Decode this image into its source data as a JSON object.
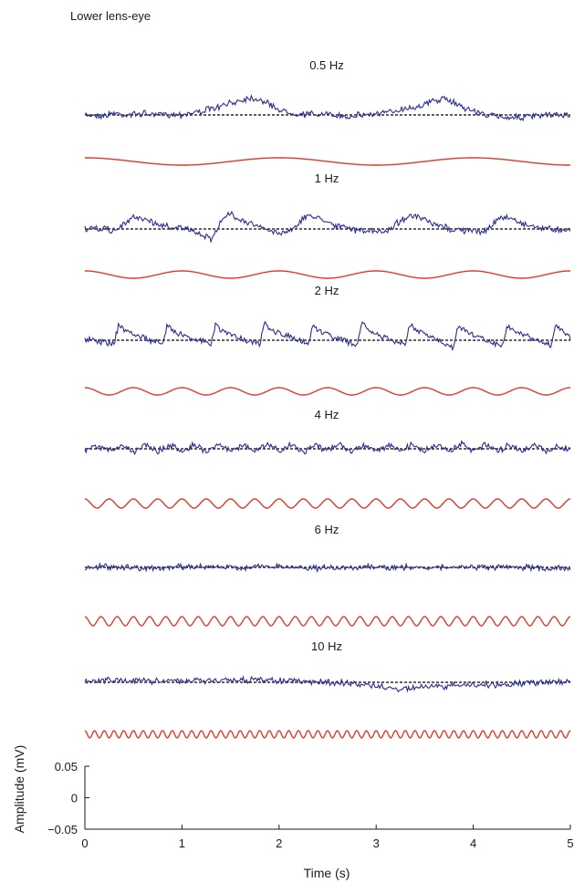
{
  "chart_data": {
    "type": "line",
    "title": "Lower lens-eye",
    "xlabel": "Time (s)",
    "ylabel": "Amplitude (mV)",
    "xlim": [
      0,
      5
    ],
    "ylim": [
      -0.05,
      0.05
    ],
    "x_ticks": [
      "0",
      "1",
      "2",
      "3",
      "4",
      "5"
    ],
    "y_ticks": [
      "0.05",
      "0",
      "−0.05"
    ],
    "colors": {
      "response": "#2b2f8f",
      "stimulus": "#e03a2a",
      "baseline": "#000000"
    },
    "panels": [
      {
        "label": "0.5 Hz",
        "frequency": 0.5,
        "response_x": [
          0,
          0.1,
          0.2,
          0.3,
          0.4,
          0.5,
          0.6,
          0.7,
          0.8,
          0.9,
          1,
          1.1,
          1.2,
          1.3,
          1.4,
          1.5,
          1.6,
          1.7,
          1.8,
          1.9,
          2,
          2.1,
          2.2,
          2.3,
          2.4,
          2.5,
          2.6,
          2.7,
          2.8,
          2.9,
          3,
          3.1,
          3.2,
          3.3,
          3.4,
          3.5,
          3.6,
          3.7,
          3.8,
          3.9,
          4,
          4.1,
          4.2,
          4.3,
          4.4,
          4.5,
          4.6,
          4.7,
          4.8,
          4.9,
          5
        ],
        "response_y": [
          0,
          0,
          -0.002,
          0.004,
          0,
          0.001,
          0.003,
          0,
          0.002,
          0.001,
          0.001,
          0.004,
          0.008,
          0.012,
          0.017,
          0.024,
          0.031,
          0.036,
          0.032,
          0.022,
          0.011,
          0.005,
          0.002,
          0.001,
          0.002,
          0,
          -0.002,
          -0.003,
          0,
          0.001,
          0.002,
          0.004,
          0.009,
          0.014,
          0.016,
          0.022,
          0.03,
          0.033,
          0.026,
          0.016,
          0.008,
          0.002,
          -0.002,
          -0.004,
          -0.004,
          -0.005,
          -0.003,
          -0.002,
          -0.001,
          0,
          0
        ]
      },
      {
        "label": "1 Hz",
        "frequency": 1,
        "response_x": [
          0,
          0.1,
          0.2,
          0.3,
          0.4,
          0.5,
          0.6,
          0.7,
          0.8,
          0.9,
          1,
          1.1,
          1.2,
          1.3,
          1.4,
          1.5,
          1.6,
          1.7,
          1.8,
          1.9,
          2,
          2.1,
          2.2,
          2.3,
          2.4,
          2.5,
          2.6,
          2.7,
          2.8,
          2.9,
          3,
          3.1,
          3.2,
          3.3,
          3.4,
          3.5,
          3.6,
          3.7,
          3.8,
          3.9,
          4,
          4.1,
          4.2,
          4.3,
          4.4,
          4.5,
          4.6,
          4.7,
          4.8,
          4.9,
          5
        ],
        "response_y": [
          0,
          0,
          0,
          -0.004,
          0.008,
          0.025,
          0.022,
          0.013,
          0.007,
          0.004,
          0.003,
          -0.005,
          -0.012,
          -0.02,
          0.015,
          0.032,
          0.02,
          0.012,
          0.004,
          -0.004,
          -0.008,
          -0.004,
          0.012,
          0.028,
          0.024,
          0.016,
          0.006,
          0.002,
          -0.002,
          -0.004,
          -0.006,
          -0.005,
          0.01,
          0.024,
          0.026,
          0.018,
          0.008,
          0.004,
          -0.002,
          -0.003,
          -0.004,
          -0.006,
          0.01,
          0.024,
          0.022,
          0.012,
          0.006,
          0.003,
          0,
          -0.001,
          0
        ]
      },
      {
        "label": "2 Hz",
        "frequency": 2,
        "response_x": [
          0,
          0.1,
          0.2,
          0.3,
          0.35,
          0.4,
          0.5,
          0.6,
          0.8,
          0.85,
          0.9,
          1,
          1.1,
          1.3,
          1.35,
          1.4,
          1.5,
          1.6,
          1.8,
          1.85,
          1.9,
          2,
          2.1,
          2.3,
          2.35,
          2.4,
          2.5,
          2.6,
          2.8,
          2.85,
          2.9,
          3,
          3.1,
          3.3,
          3.35,
          3.4,
          3.5,
          3.6,
          3.8,
          3.85,
          3.9,
          4,
          4.1,
          4.3,
          4.35,
          4.4,
          4.5,
          4.6,
          4.8,
          4.85,
          4.9,
          5
        ],
        "response_y": [
          0,
          0.001,
          -0.004,
          -0.006,
          0.033,
          0.022,
          0.013,
          0.006,
          -0.01,
          0.034,
          0.022,
          0.012,
          0.005,
          -0.008,
          0.033,
          0.022,
          0.012,
          0.005,
          -0.01,
          0.035,
          0.024,
          0.014,
          0.007,
          -0.008,
          0.034,
          0.022,
          0.012,
          0.005,
          -0.012,
          0.036,
          0.024,
          0.012,
          0.004,
          -0.01,
          0.034,
          0.022,
          0.012,
          0.004,
          -0.014,
          0.035,
          0.022,
          0.012,
          0.004,
          -0.012,
          0.034,
          0.022,
          0.012,
          0.004,
          -0.012,
          0.034,
          0.02,
          0.005
        ]
      },
      {
        "label": "4 Hz",
        "frequency": 4,
        "response_x": [
          0,
          0.125,
          0.25,
          0.375,
          0.5,
          0.625,
          0.75,
          0.875,
          1,
          1.125,
          1.25,
          1.375,
          1.5,
          1.625,
          1.75,
          1.875,
          2,
          2.125,
          2.25,
          2.375,
          2.5,
          2.625,
          2.75,
          2.875,
          3,
          3.125,
          3.25,
          3.375,
          3.5,
          3.625,
          3.75,
          3.875,
          4,
          4.125,
          4.25,
          4.375,
          4.5,
          4.625,
          4.75,
          4.875,
          5
        ],
        "response_y": [
          -0.006,
          0.005,
          -0.004,
          0.008,
          -0.006,
          0.01,
          -0.004,
          0.006,
          -0.004,
          0.008,
          -0.006,
          0.01,
          -0.004,
          0.008,
          -0.006,
          0.009,
          -0.004,
          0.007,
          -0.006,
          0.008,
          -0.004,
          0.01,
          -0.006,
          0.008,
          -0.004,
          0.007,
          -0.006,
          0.009,
          -0.004,
          0.008,
          -0.006,
          0.01,
          -0.004,
          0.008,
          -0.006,
          0.009,
          -0.004,
          0.008,
          -0.006,
          0.006,
          -0.004
        ]
      },
      {
        "label": "6 Hz",
        "frequency": 6,
        "response_x": [
          0,
          0.25,
          0.5,
          0.75,
          1,
          1.25,
          1.5,
          1.75,
          2,
          2.25,
          2.5,
          2.75,
          3,
          3.25,
          3.5,
          3.75,
          4,
          4.25,
          4.5,
          4.75,
          5
        ],
        "response_y": [
          0,
          0.002,
          0,
          -0.002,
          0.001,
          0.002,
          -0.001,
          0.001,
          0.001,
          0,
          -0.002,
          0.001,
          -0.001,
          0,
          0.001,
          -0.001,
          0.001,
          -0.001,
          0,
          -0.002,
          0
        ]
      },
      {
        "label": "10 Hz",
        "frequency": 10,
        "response_x": [
          0,
          0.25,
          0.5,
          0.75,
          1,
          1.25,
          1.5,
          1.75,
          2,
          2.25,
          2.5,
          2.75,
          3,
          3.25,
          3.5,
          3.75,
          4,
          4.25,
          4.5,
          4.75,
          5
        ],
        "response_y": [
          0.002,
          0.005,
          0.004,
          0.003,
          0.003,
          0.004,
          0.005,
          0.005,
          0.004,
          0.002,
          0,
          -0.003,
          -0.008,
          -0.014,
          -0.01,
          -0.008,
          -0.005,
          -0.005,
          -0.003,
          0,
          0.003
        ]
      }
    ]
  }
}
